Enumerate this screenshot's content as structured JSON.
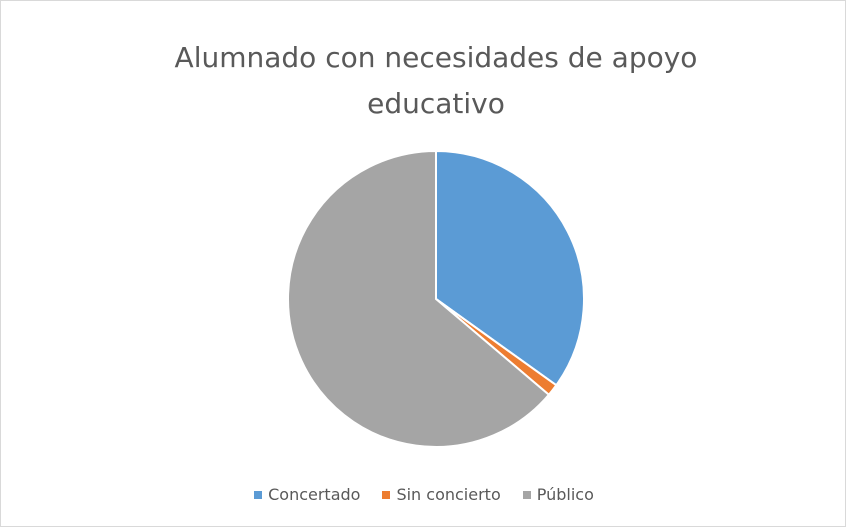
{
  "chart_data": {
    "type": "pie",
    "title": "Alumnado con necesidades de apoyo educativo",
    "categories": [
      "Concertado",
      "Sin concierto",
      "Público"
    ],
    "values": [
      34.9,
      1.3,
      63.8
    ],
    "colors": [
      "#5b9bd5",
      "#ed7d31",
      "#a5a5a5"
    ],
    "legend": "bottom"
  }
}
